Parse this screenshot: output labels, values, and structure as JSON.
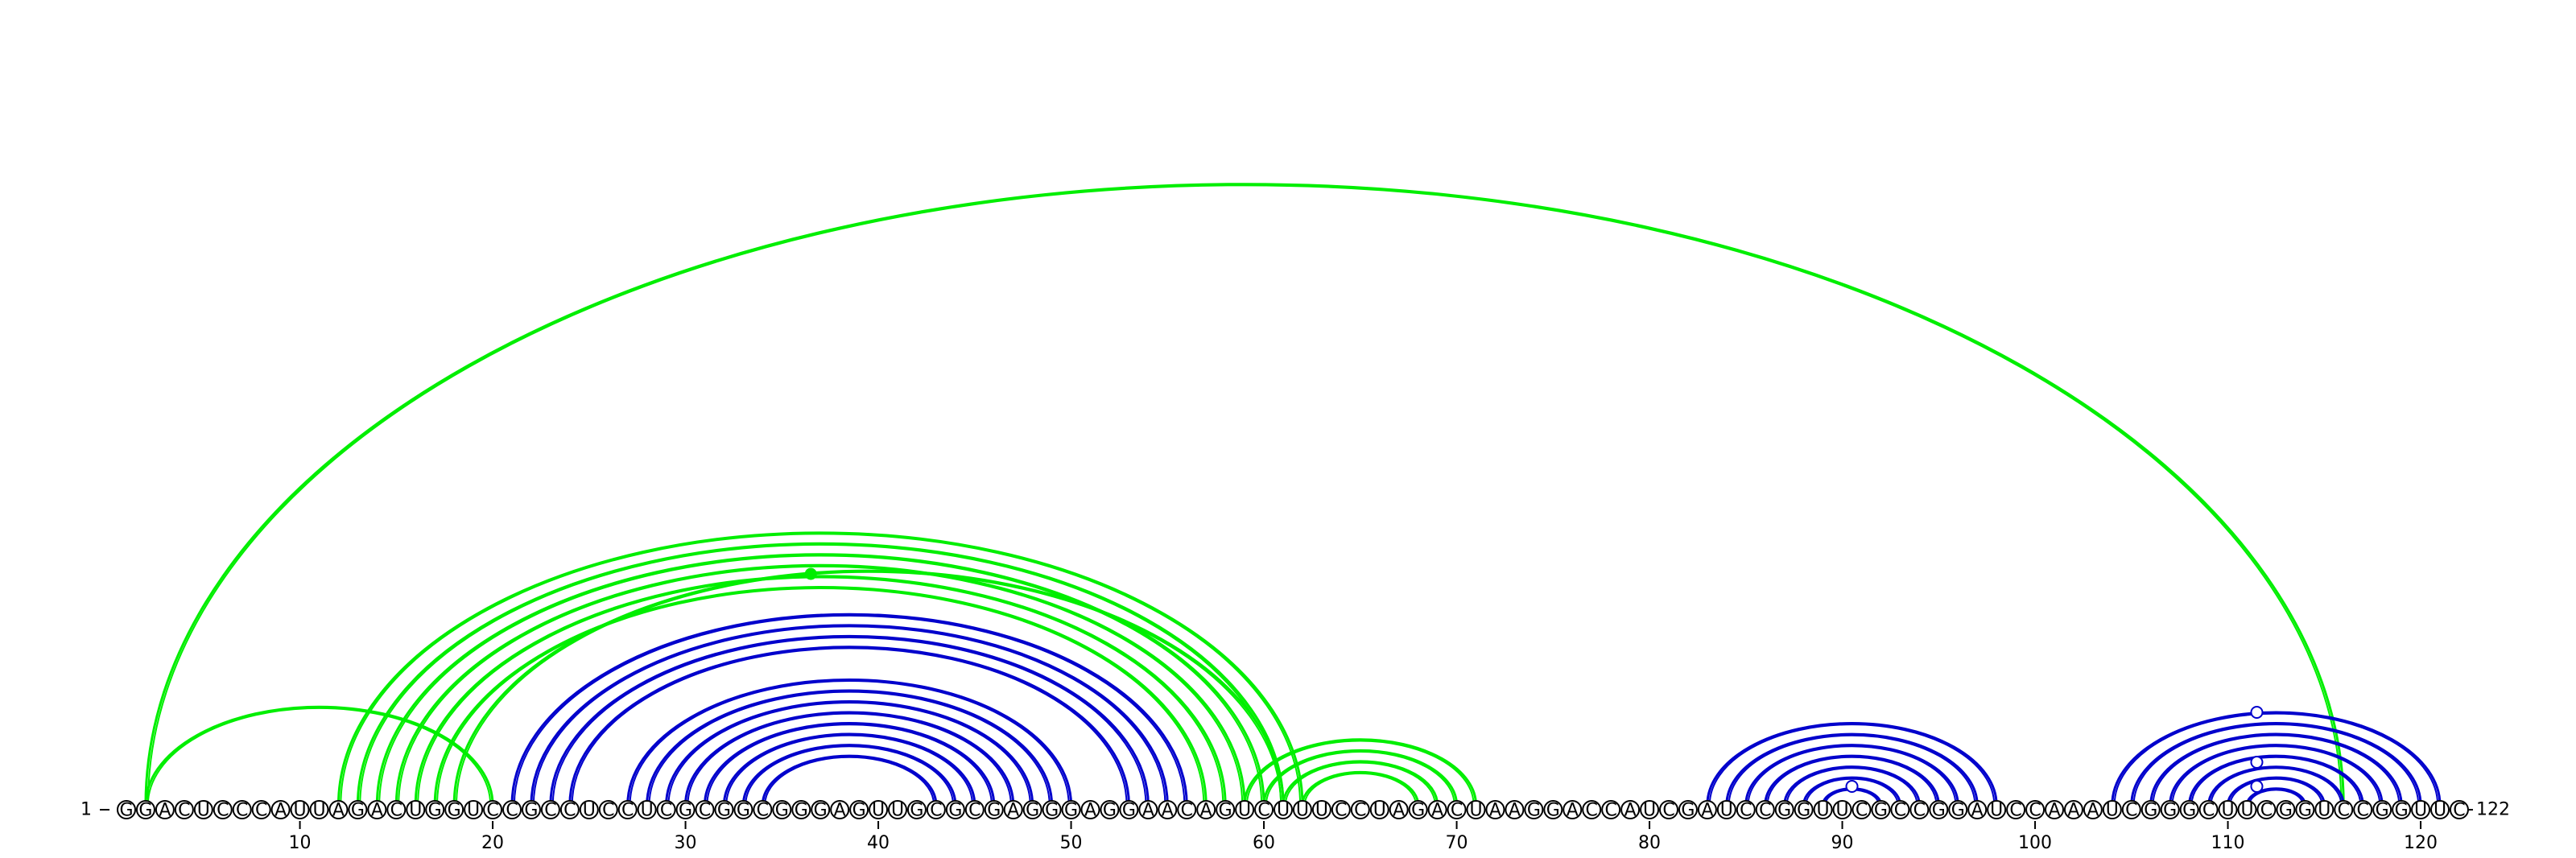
{
  "sequence": "GGACUCCCAUUAGACUGGUCCGCCUCCUCGCGGCGGGAGUUGCGCGAGGGAGGAACAGUCUUUCCUAGACUAAGGACCAUCGAUCCGGUUCGCCGGAUCCAAAUCGGGCUUCGGUCCGGUUC",
  "start_label": "1",
  "end_label": "122",
  "tick_labels": [
    "10",
    "20",
    "30",
    "40",
    "50",
    "60",
    "70",
    "80",
    "90",
    "100",
    "110",
    "120"
  ],
  "colors": {
    "blue": "#0000cc",
    "green": "#00ee00"
  },
  "chart_data": {
    "type": "arc-diagram",
    "length": 122,
    "blue_pairs": [
      [
        21,
        56
      ],
      [
        22,
        55
      ],
      [
        23,
        54
      ],
      [
        24,
        53
      ],
      [
        27,
        50
      ],
      [
        28,
        49
      ],
      [
        29,
        48
      ],
      [
        30,
        47
      ],
      [
        31,
        46
      ],
      [
        32,
        45
      ],
      [
        33,
        44
      ],
      [
        34,
        43
      ],
      [
        83,
        98
      ],
      [
        84,
        97
      ],
      [
        85,
        96
      ],
      [
        86,
        95
      ],
      [
        87,
        94
      ],
      [
        88,
        93
      ],
      [
        89,
        92
      ],
      [
        104,
        121
      ],
      [
        105,
        120
      ],
      [
        106,
        119
      ],
      [
        107,
        118
      ],
      [
        108,
        117
      ],
      [
        109,
        116
      ],
      [
        110,
        115
      ],
      [
        111,
        114
      ]
    ],
    "green_pairs": [
      [
        2,
        116
      ],
      [
        2,
        20
      ],
      [
        12,
        62
      ],
      [
        13,
        61
      ],
      [
        14,
        60
      ],
      [
        15,
        59
      ],
      [
        16,
        58
      ],
      [
        17,
        57
      ],
      [
        18,
        61
      ],
      [
        59,
        71
      ],
      [
        60,
        70
      ],
      [
        61,
        69
      ],
      [
        62,
        68
      ]
    ],
    "markers": [
      {
        "position": 36.5,
        "kind": "filled-green"
      },
      {
        "position": 90.5,
        "kind": "open-blue"
      },
      {
        "position": 111.5,
        "kind": "open-blue"
      },
      {
        "position": 111.5,
        "kind": "open-blue"
      },
      {
        "position": 111.5,
        "kind": "open-blue"
      }
    ]
  }
}
